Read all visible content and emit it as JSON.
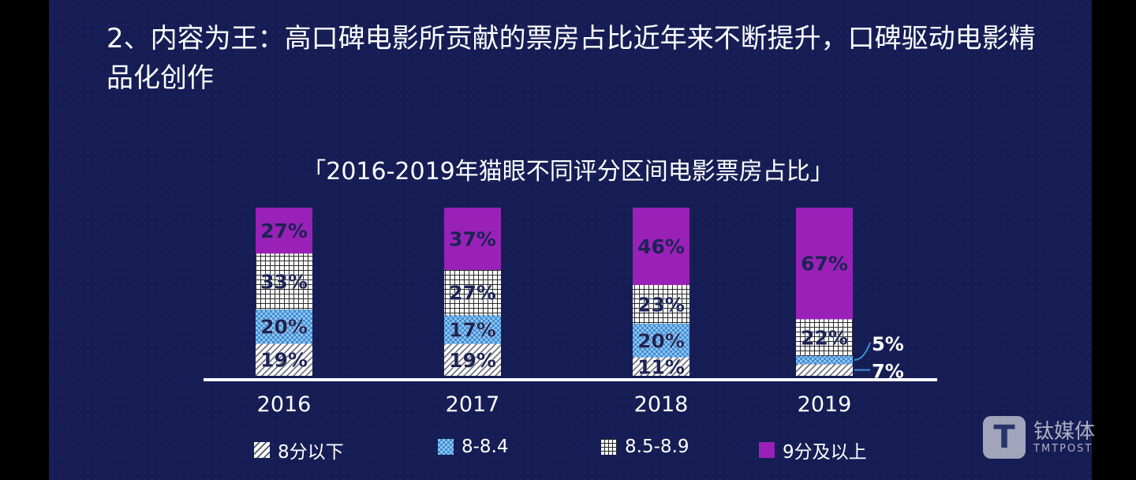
{
  "heading": "2、内容为王：高口碑电影所贡献的票房占比近年来不断提升，口碑驱动电影精品化创作",
  "watermark": {
    "logo_letter": "T",
    "name": "钛媒体",
    "sub": "TMTPOST"
  },
  "colors": {
    "panel": "#161d55",
    "bg": "#000000",
    "purple": "#9a21b8",
    "blue": "#3e8fd6",
    "white": "#ffffff",
    "navy_text": "#1c2354"
  },
  "chart_data": {
    "type": "bar",
    "stacked": true,
    "title": "「2016-2019年猫眼不同评分区间电影票房占比」",
    "categories": [
      "2016",
      "2017",
      "2018",
      "2019"
    ],
    "series": [
      {
        "name": "8分以下",
        "pattern": "diagonal",
        "values": [
          19,
          19,
          11,
          7
        ],
        "labels": [
          "19%",
          "19%",
          "11%",
          "7%"
        ]
      },
      {
        "name": "8-8.4",
        "pattern": "blue-check",
        "values": [
          20,
          17,
          20,
          5
        ],
        "labels": [
          "20%",
          "17%",
          "20%",
          "5%"
        ]
      },
      {
        "name": "8.5-8.9",
        "pattern": "grid",
        "values": [
          33,
          27,
          23,
          22
        ],
        "labels": [
          "33%",
          "27%",
          "23%",
          "22%"
        ]
      },
      {
        "name": "9分及以上",
        "pattern": "purple",
        "values": [
          27,
          37,
          46,
          67
        ],
        "labels": [
          "27%",
          "37%",
          "46%",
          "67%"
        ]
      }
    ],
    "unit": "%",
    "legend_position": "bottom",
    "grid": false
  }
}
